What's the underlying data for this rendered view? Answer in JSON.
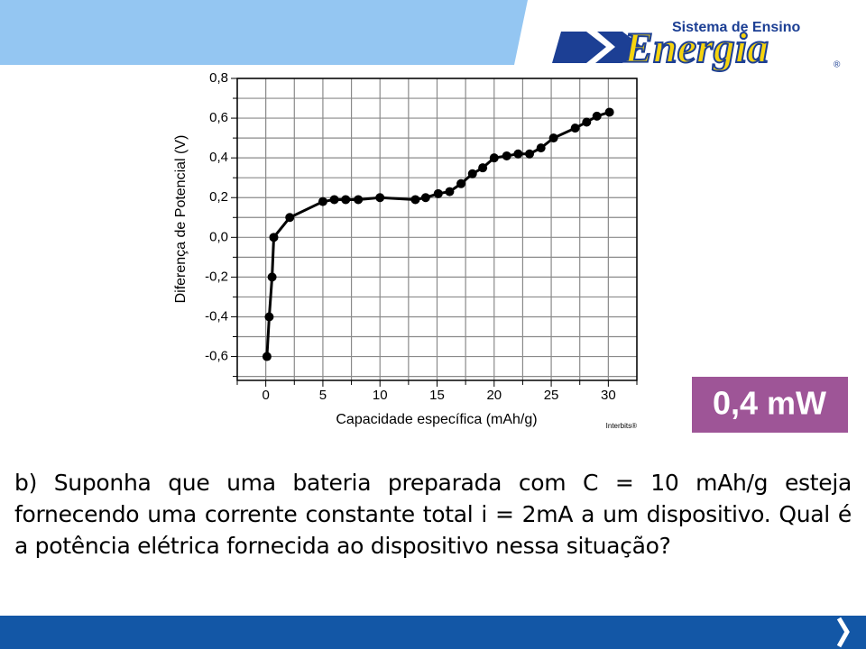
{
  "header": {
    "logo_subtitle": "Sistema de Ensino",
    "logo_name": "Energia",
    "logo_mark": "®"
  },
  "chart_data": {
    "type": "line",
    "xlabel": "Capacidade específica (mAh/g)",
    "ylabel": "Diferença de Potencial (V)",
    "credit": "Interbits®",
    "color": "#000000",
    "x": [
      0.1,
      0.3,
      0.55,
      0.7,
      2.1,
      5,
      6,
      7,
      8.1,
      10,
      13.1,
      14,
      15.1,
      16.1,
      17.1,
      18.1,
      19,
      20,
      21.1,
      22.1,
      23.1,
      24.1,
      25.2,
      27.1,
      28.1,
      29,
      30.1
    ],
    "values": [
      -0.6,
      -0.4,
      -0.2,
      0.0,
      0.1,
      0.18,
      0.19,
      0.19,
      0.19,
      0.2,
      0.19,
      0.2,
      0.22,
      0.23,
      0.27,
      0.32,
      0.35,
      0.4,
      0.41,
      0.42,
      0.42,
      0.45,
      0.5,
      0.55,
      0.58,
      0.61,
      0.63
    ],
    "xlim": [
      -2.5,
      32.5
    ],
    "ylim": [
      -0.72,
      0.8
    ],
    "xticks": [
      0,
      5,
      10,
      15,
      20,
      25,
      30
    ],
    "xminorticks": [
      -2.5,
      2.5,
      7.5,
      12.5,
      17.5,
      22.5,
      27.5,
      32.5
    ],
    "yticks": [
      {
        "value": 0.8,
        "label": "0,8"
      },
      {
        "value": 0.6,
        "label": "0,6"
      },
      {
        "value": 0.4,
        "label": "0,4"
      },
      {
        "value": 0.2,
        "label": "0,2"
      },
      {
        "value": 0,
        "label": "0,0"
      },
      {
        "value": -0.2,
        "label": "-0,2"
      },
      {
        "value": -0.4,
        "label": "-0,4"
      },
      {
        "value": -0.6,
        "label": "-0,6"
      }
    ],
    "yminorticks": [
      0.7,
      0.5,
      0.3,
      0.1,
      -0.1,
      -0.3,
      -0.5,
      -0.7
    ],
    "grid": true
  },
  "answer": "0,4 mW",
  "question": "b) Suponha que uma bateria preparada com  C = 10 mAh/g esteja fornecendo uma corrente constante total i = 2mA  a um dispositivo. Qual é a potência elétrica fornecida ao dispositivo nessa situação?"
}
